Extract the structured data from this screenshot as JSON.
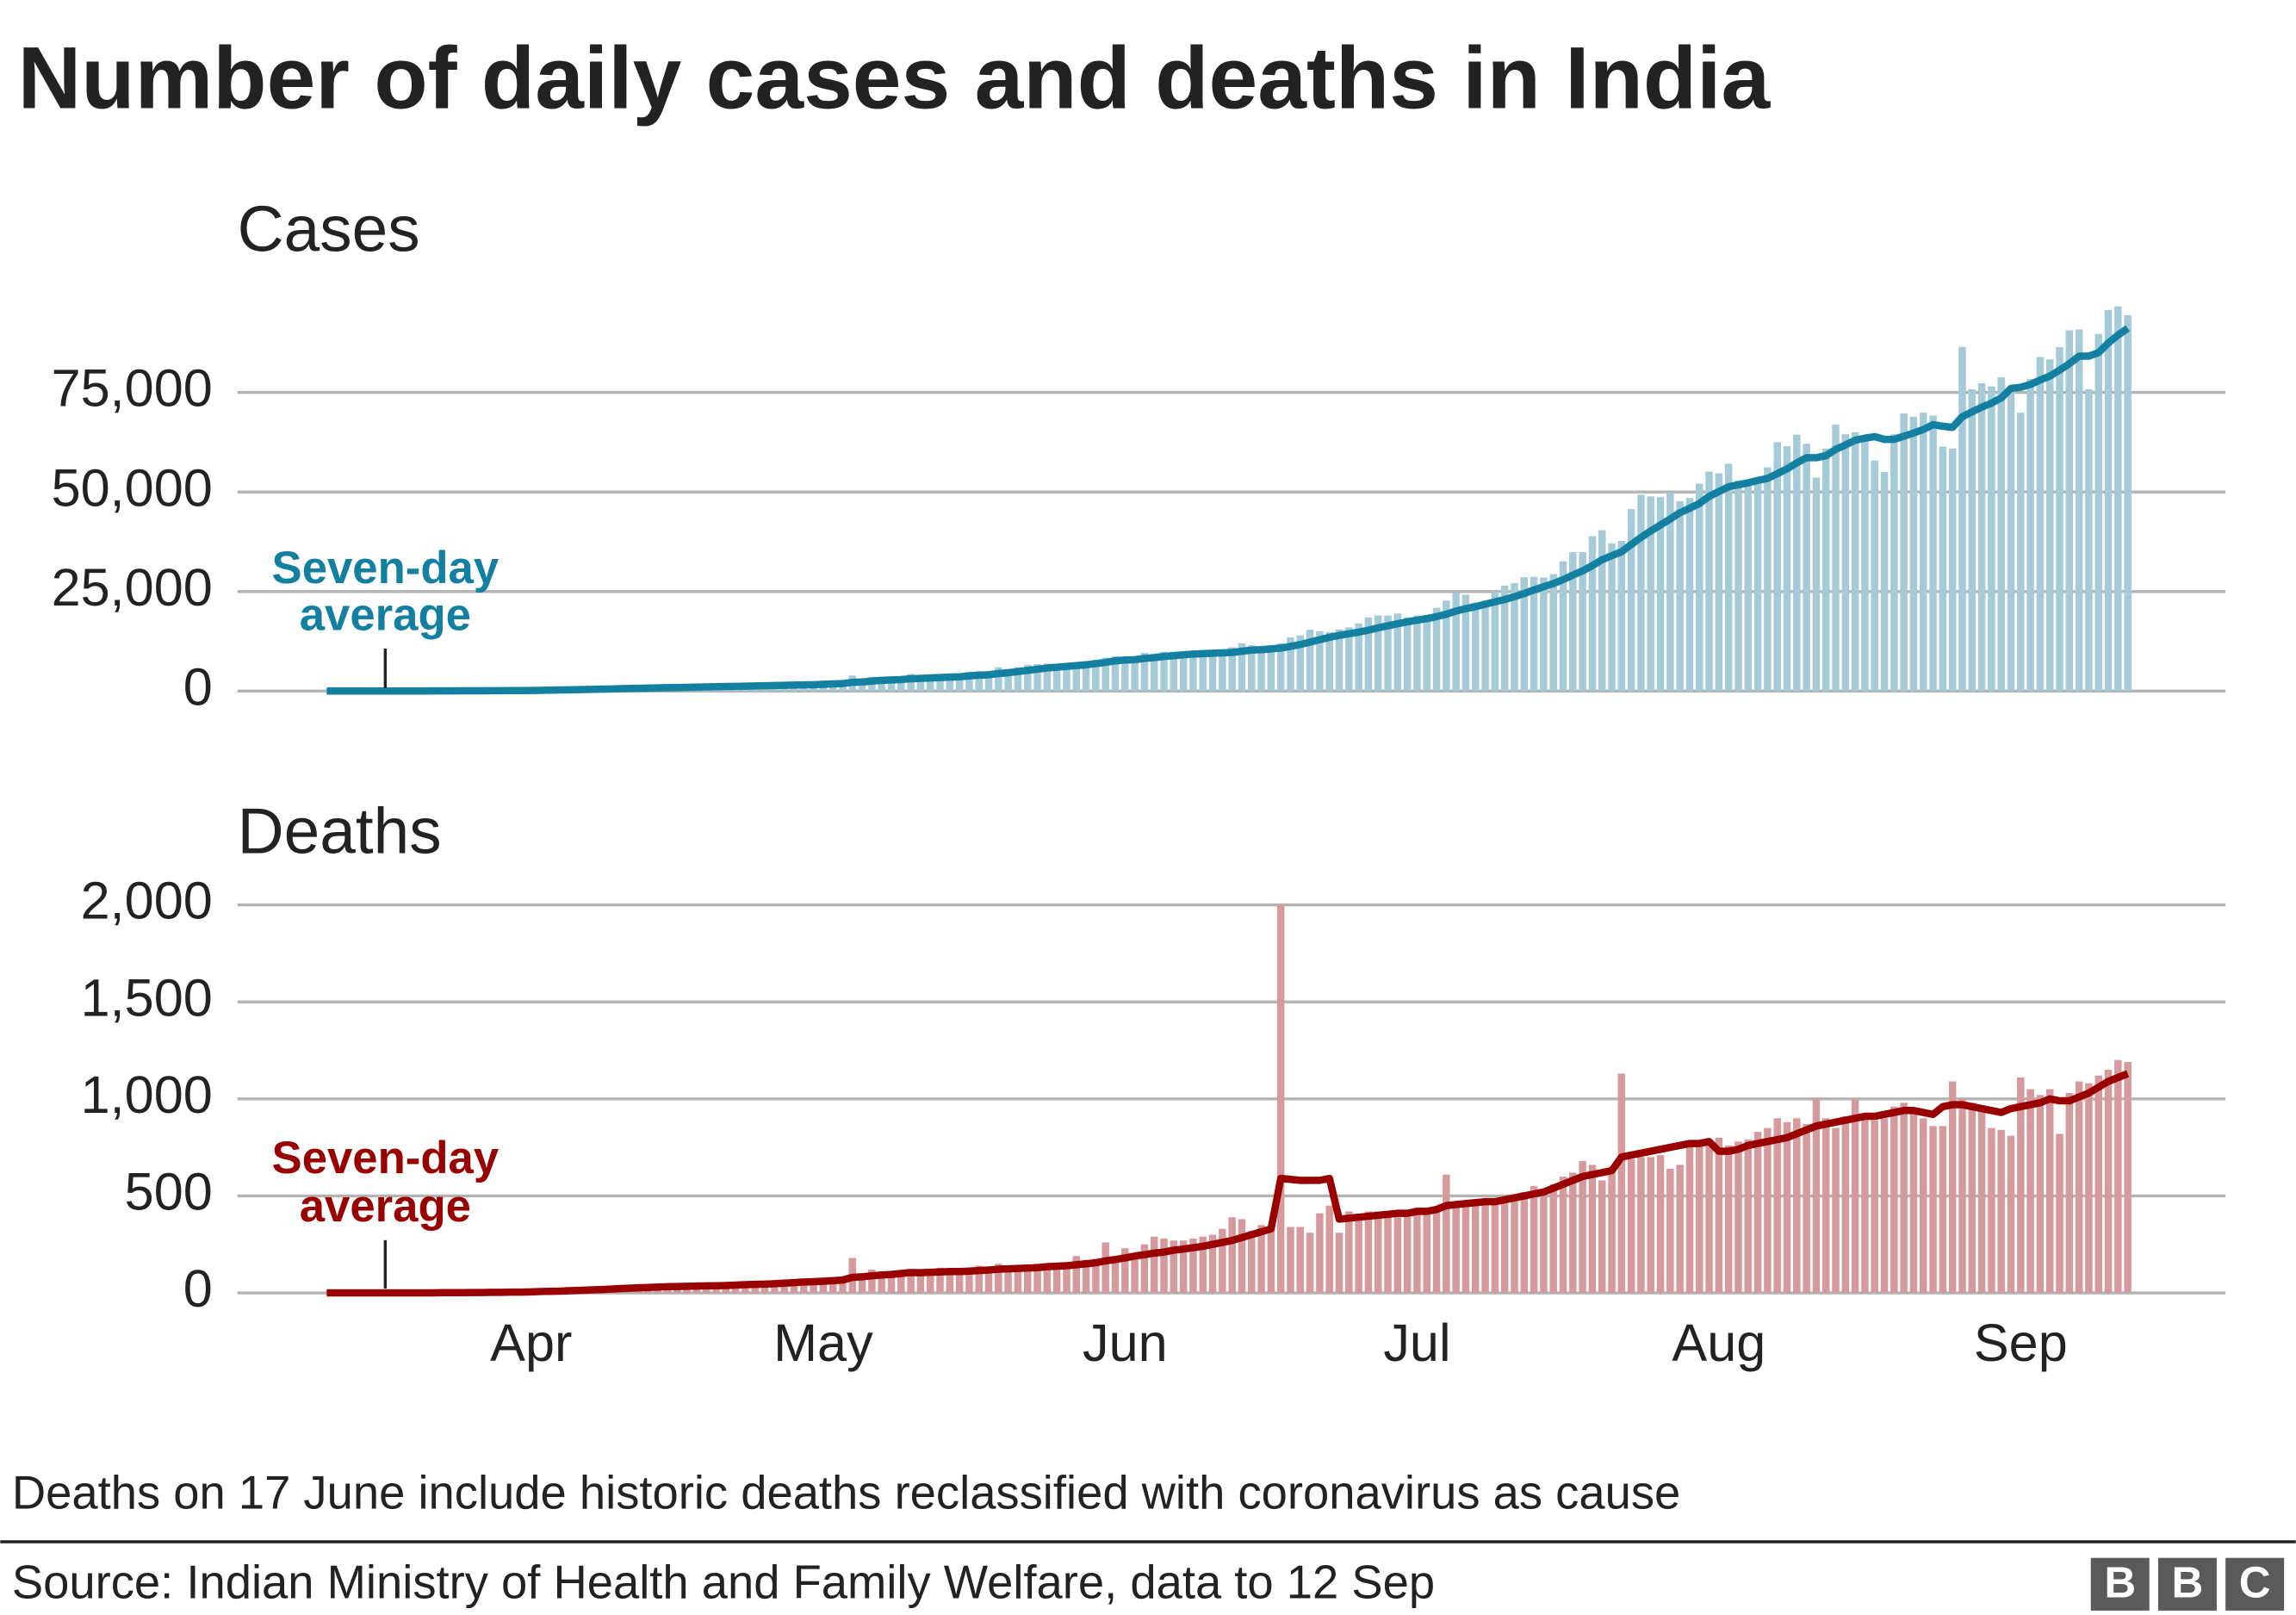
{
  "title": "Number of daily cases and deaths in India",
  "chart_data": [
    {
      "type": "bar",
      "title": "Cases",
      "color": "#a5cbd9",
      "ylim": [
        0,
        100000
      ],
      "yticks": [
        0,
        {
          "value": 25000,
          "label": "25,000"
        },
        {
          "value": 50000,
          "label": "50,000"
        },
        {
          "value": 75000,
          "label": "75,000"
        }
      ],
      "grid": true,
      "values": [
        10,
        10,
        10,
        10,
        20,
        10,
        20,
        30,
        20,
        50,
        80,
        90,
        70,
        80,
        90,
        90,
        120,
        150,
        110,
        230,
        230,
        420,
        470,
        560,
        600,
        600,
        500,
        700,
        500,
        800,
        900,
        1000,
        900,
        1200,
        1000,
        800,
        1300,
        1100,
        1300,
        1600,
        1200,
        1300,
        1700,
        1400,
        1600,
        1800,
        1600,
        1400,
        1900,
        1800,
        1800,
        2400,
        2300,
        2600,
        3900,
        3000,
        3600,
        3300,
        3300,
        3300,
        4300,
        3600,
        3500,
        3700,
        3900,
        4000,
        4900,
        5000,
        4600,
        6000,
        5600,
        6000,
        6600,
        6800,
        6900,
        6500,
        6400,
        7200,
        7500,
        7900,
        8400,
        8800,
        8200,
        7700,
        9600,
        9300,
        9900,
        9900,
        9900,
        9900,
        9900,
        9000,
        10000,
        11000,
        12000,
        11500,
        11000,
        10700,
        12000,
        13500,
        14000,
        15400,
        15000,
        14800,
        15500,
        16000,
        17000,
        18500,
        19000,
        19000,
        19500,
        18500,
        19000,
        19100,
        20900,
        22700,
        24800,
        24200,
        22200,
        22700,
        24900,
        26500,
        27100,
        28600,
        28700,
        28500,
        29400,
        32600,
        34900,
        34900,
        38900,
        40400,
        37100,
        37700,
        45700,
        49300,
        48900,
        48700,
        49900,
        47700,
        48500,
        52100,
        55100,
        54700,
        57100,
        52900,
        52000,
        52500,
        56200,
        62500,
        61500,
        64400,
        62100,
        53600,
        60900,
        66900,
        64500,
        65000,
        63500,
        57900,
        55000,
        64500,
        69700,
        68900,
        69900,
        69200,
        61400,
        60900,
        86400,
        75800,
        77300,
        76500,
        78800,
        76000,
        69900,
        78400,
        83900,
        83300,
        86400,
        90600,
        90800,
        75800,
        89700,
        95700,
        96600,
        94400
      ],
      "average": {
        "label": [
          "Seven-day",
          "average"
        ],
        "color": "#1380a1",
        "values": [
          10,
          10,
          10,
          10,
          10,
          10,
          15,
          15,
          20,
          25,
          30,
          40,
          50,
          60,
          70,
          80,
          90,
          100,
          110,
          120,
          140,
          170,
          200,
          240,
          290,
          330,
          380,
          430,
          480,
          520,
          580,
          640,
          690,
          750,
          820,
          850,
          900,
          950,
          1000,
          1050,
          1100,
          1150,
          1200,
          1250,
          1300,
          1350,
          1400,
          1450,
          1500,
          1550,
          1600,
          1700,
          1800,
          1900,
          2200,
          2300,
          2500,
          2700,
          2800,
          2900,
          3100,
          3200,
          3300,
          3400,
          3500,
          3600,
          3800,
          4000,
          4100,
          4400,
          4600,
          4900,
          5200,
          5500,
          5800,
          6000,
          6200,
          6400,
          6600,
          6900,
          7200,
          7600,
          7800,
          7900,
          8200,
          8400,
          8700,
          8900,
          9100,
          9300,
          9400,
          9500,
          9600,
          9700,
          10000,
          10300,
          10400,
          10600,
          10800,
          11200,
          11700,
          12300,
          12900,
          13500,
          14000,
          14400,
          14800,
          15300,
          15900,
          16400,
          16900,
          17400,
          17800,
          18200,
          18700,
          19300,
          20100,
          20700,
          21200,
          21800,
          22400,
          23000,
          23700,
          24500,
          25400,
          26200,
          27000,
          28000,
          29100,
          30200,
          31500,
          33000,
          34000,
          35000,
          36800,
          38600,
          40200,
          41700,
          43200,
          44800,
          45900,
          47100,
          48900,
          50100,
          51300,
          51800,
          52300,
          52900,
          53400,
          54600,
          55800,
          57300,
          58600,
          58600,
          59100,
          60700,
          61800,
          63000,
          63500,
          63900,
          63200,
          63200,
          64000,
          64800,
          65700,
          66900,
          66500,
          66200,
          68900,
          70100,
          71300,
          72300,
          73600,
          76000,
          76300,
          77000,
          78100,
          79100,
          80600,
          82200,
          84100,
          84100,
          85000,
          87400,
          89400,
          91100
        ]
      }
    },
    {
      "type": "bar",
      "title": "Deaths",
      "color": "#d69a9d",
      "ylim": [
        0,
        2000
      ],
      "yticks": [
        0,
        500,
        {
          "value": 1000,
          "label": "1,000"
        },
        {
          "value": 1500,
          "label": "1,500"
        },
        {
          "value": 2000,
          "label": "2,000"
        }
      ],
      "grid": true,
      "categories": [
        null,
        null,
        null,
        null,
        null,
        null,
        null,
        null,
        null,
        null,
        null,
        null,
        null,
        null,
        null,
        null,
        null,
        null,
        null,
        null,
        null,
        "Apr",
        null,
        null,
        null,
        null,
        null,
        null,
        null,
        null,
        null,
        null,
        null,
        null,
        null,
        null,
        null,
        null,
        null,
        null,
        null,
        null,
        null,
        null,
        null,
        null,
        null,
        null,
        null,
        null,
        null,
        "May",
        null,
        null,
        null,
        null,
        null,
        null,
        null,
        null,
        null,
        null,
        null,
        null,
        null,
        null,
        null,
        null,
        null,
        null,
        null,
        null,
        null,
        null,
        null,
        null,
        null,
        null,
        null,
        null,
        null,
        null,
        "Jun",
        null,
        null,
        null,
        null,
        null,
        null,
        null,
        null,
        null,
        null,
        null,
        null,
        null,
        null,
        null,
        null,
        null,
        null,
        null,
        null,
        null,
        null,
        null,
        null,
        null,
        null,
        null,
        null,
        null,
        "Jul",
        null,
        null,
        null,
        null,
        null,
        null,
        null,
        null,
        null,
        null,
        null,
        null,
        null,
        null,
        null,
        null,
        null,
        null,
        null,
        null,
        null,
        null,
        null,
        null,
        null,
        null,
        null,
        null,
        null,
        null,
        "Aug",
        null,
        null,
        null,
        null,
        null,
        null,
        null,
        null,
        null,
        null,
        null,
        null,
        null,
        null,
        null,
        null,
        null,
        null,
        null,
        null,
        null,
        null,
        null,
        null,
        null,
        null,
        null,
        null,
        null,
        null,
        "Sep",
        null,
        null,
        null,
        null,
        null,
        null,
        null,
        null,
        null,
        null,
        null
      ],
      "values": [
        0,
        0,
        1,
        0,
        1,
        0,
        1,
        0,
        0,
        1,
        2,
        3,
        2,
        1,
        2,
        6,
        3,
        5,
        4,
        8,
        6,
        12,
        20,
        14,
        12,
        30,
        20,
        25,
        30,
        35,
        40,
        30,
        33,
        35,
        35,
        40,
        35,
        35,
        40,
        40,
        35,
        40,
        45,
        50,
        50,
        50,
        50,
        60,
        70,
        72,
        70,
        70,
        80,
        80,
        180,
        100,
        120,
        100,
        100,
        110,
        120,
        95,
        120,
        130,
        120,
        100,
        120,
        140,
        130,
        150,
        140,
        130,
        145,
        150,
        150,
        145,
        150,
        190,
        170,
        175,
        260,
        190,
        230,
        200,
        250,
        290,
        280,
        270,
        270,
        280,
        290,
        300,
        330,
        390,
        380,
        320,
        350,
        340,
        2000,
        340,
        340,
        310,
        410,
        450,
        310,
        420,
        380,
        420,
        420,
        390,
        390,
        420,
        440,
        440,
        440,
        610,
        440,
        450,
        460,
        480,
        470,
        480,
        500,
        520,
        550,
        530,
        560,
        600,
        620,
        680,
        660,
        580,
        650,
        1130,
        690,
        700,
        700,
        710,
        640,
        660,
        760,
        780,
        770,
        800,
        760,
        780,
        790,
        830,
        850,
        900,
        880,
        900,
        870,
        1000,
        900,
        850,
        910,
        1000,
        920,
        890,
        900,
        960,
        980,
        940,
        900,
        860,
        860,
        1090,
        1000,
        980,
        960,
        850,
        840,
        810,
        1110,
        1050,
        1020,
        1050,
        820,
        1030,
        1090,
        1080,
        1120,
        1150,
        1200,
        1190
      ],
      "average": {
        "label": [
          "Seven-day",
          "average"
        ],
        "color": "#990000",
        "values": [
          0,
          0,
          0,
          0,
          0,
          0,
          0,
          0,
          0,
          0,
          0,
          0,
          1,
          1,
          1,
          2,
          2,
          3,
          3,
          4,
          4,
          5,
          7,
          8,
          9,
          11,
          13,
          15,
          17,
          19,
          22,
          24,
          26,
          28,
          30,
          32,
          33,
          34,
          35,
          36,
          37,
          38,
          40,
          42,
          44,
          45,
          47,
          50,
          53,
          56,
          58,
          60,
          63,
          66,
          80,
          83,
          88,
          92,
          95,
          100,
          105,
          104,
          106,
          108,
          110,
          110,
          112,
          115,
          118,
          122,
          124,
          126,
          128,
          130,
          135,
          138,
          140,
          145,
          150,
          155,
          165,
          172,
          180,
          190,
          197,
          205,
          210,
          220,
          226,
          233,
          240,
          250,
          260,
          270,
          285,
          300,
          315,
          330,
          590,
          585,
          580,
          580,
          580,
          590,
          380,
          385,
          390,
          395,
          400,
          405,
          410,
          410,
          420,
          420,
          430,
          450,
          455,
          460,
          465,
          470,
          470,
          480,
          490,
          500,
          510,
          520,
          540,
          560,
          580,
          600,
          610,
          620,
          630,
          700,
          710,
          720,
          730,
          740,
          750,
          760,
          770,
          770,
          780,
          730,
          730,
          740,
          760,
          770,
          780,
          790,
          800,
          820,
          840,
          860,
          870,
          880,
          890,
          900,
          910,
          910,
          920,
          930,
          940,
          940,
          930,
          920,
          960,
          970,
          970,
          960,
          950,
          940,
          930,
          950,
          960,
          970,
          980,
          1000,
          990,
          990,
          1010,
          1030,
          1060,
          1090,
          1110,
          1130
        ]
      }
    }
  ],
  "footnote": "Deaths on 17 June include historic deaths reclassified with coronavirus as cause",
  "source": "Source: Indian Ministry of Health and Family Welfare, data to 12 Sep",
  "logo": [
    "B",
    "B",
    "C"
  ]
}
